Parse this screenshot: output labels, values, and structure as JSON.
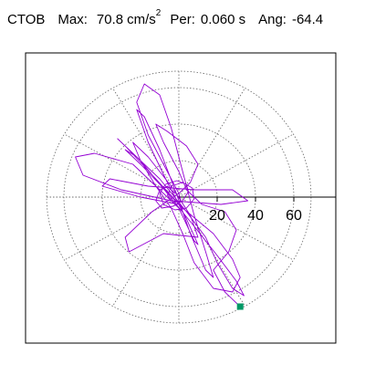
{
  "header": {
    "station": "CTOB",
    "max_label": "Max:",
    "max_value": "70.8",
    "max_unit": "cm/s",
    "max_unit_exp": "2",
    "per_label": "Per:",
    "per_value": "0.060 s",
    "ang_label": "Ang:",
    "ang_value": "-64.4"
  },
  "chart_data": {
    "type": "line",
    "title": "",
    "xlabel": "",
    "ylabel": "",
    "polar_grid": {
      "rings": [
        20,
        40,
        60
      ],
      "ring_labels": [
        "20",
        "40",
        "60"
      ],
      "spokes_deg": [
        0,
        30,
        60,
        90,
        120,
        150,
        180,
        210,
        240,
        270,
        300,
        330
      ],
      "max_radius": 60
    },
    "xlim": [
      -65,
      77
    ],
    "ylim": [
      -58,
      65
    ],
    "grid": true,
    "series": [
      {
        "color": "#9400d3",
        "points": [
          [
            -2,
            2
          ],
          [
            -6,
            6
          ],
          [
            -10,
            4
          ],
          [
            -12,
            -2
          ],
          [
            -9,
            -6
          ],
          [
            -3,
            -5
          ],
          [
            2,
            -2
          ],
          [
            5,
            3
          ],
          [
            4,
            7
          ],
          [
            -1,
            9
          ],
          [
            -7,
            7
          ],
          [
            -10,
            2
          ],
          [
            -8,
            -4
          ],
          [
            -2,
            -7
          ],
          [
            4,
            -6
          ],
          [
            8,
            -1
          ],
          [
            7,
            5
          ],
          [
            2,
            8
          ],
          [
            -4,
            6
          ],
          [
            -6,
            1
          ],
          [
            -3,
            -3
          ],
          [
            1,
            -2
          ],
          [
            0,
            2
          ],
          [
            -16,
            34
          ],
          [
            -22,
            52
          ],
          [
            -18,
            62
          ],
          [
            -10,
            56
          ],
          [
            -4,
            38
          ],
          [
            2,
            14
          ],
          [
            8,
            -10
          ],
          [
            14,
            -30
          ],
          [
            18,
            -44
          ],
          [
            14,
            -40
          ],
          [
            6,
            -20
          ],
          [
            -2,
            4
          ],
          [
            -10,
            26
          ],
          [
            -18,
            44
          ],
          [
            -22,
            48
          ],
          [
            -16,
            30
          ],
          [
            -6,
            8
          ],
          [
            4,
            -12
          ],
          [
            10,
            -26
          ],
          [
            8,
            -24
          ],
          [
            0,
            -6
          ],
          [
            -24,
            18
          ],
          [
            -44,
            24
          ],
          [
            -54,
            22
          ],
          [
            -50,
            12
          ],
          [
            -30,
            4
          ],
          [
            -4,
            -2
          ],
          [
            22,
            -4
          ],
          [
            36,
            -2
          ],
          [
            28,
            4
          ],
          [
            8,
            4
          ],
          [
            -16,
            6
          ],
          [
            -36,
            10
          ],
          [
            -40,
            6
          ],
          [
            -20,
            0
          ],
          [
            0,
            -4
          ],
          [
            -20,
            18
          ],
          [
            -28,
            26
          ],
          [
            -22,
            22
          ],
          [
            -10,
            10
          ],
          [
            4,
            -8
          ],
          [
            14,
            -22
          ],
          [
            20,
            -36
          ],
          [
            28,
            -50
          ],
          [
            34,
            -54
          ],
          [
            30,
            -46
          ],
          [
            20,
            -32
          ],
          [
            8,
            -16
          ],
          [
            -6,
            2
          ],
          [
            -20,
            20
          ],
          [
            -32,
            32
          ],
          [
            -28,
            28
          ],
          [
            -12,
            10
          ],
          [
            2,
            -6
          ],
          [
            18,
            -20
          ],
          [
            28,
            -34
          ],
          [
            32,
            -44
          ],
          [
            28,
            -52
          ],
          [
            18,
            -50
          ],
          [
            8,
            -36
          ],
          [
            2,
            -20
          ],
          [
            -4,
            -6
          ],
          [
            -12,
            6
          ],
          [
            -20,
            20
          ],
          [
            -24,
            30
          ],
          [
            -16,
            22
          ],
          [
            -4,
            6
          ],
          [
            6,
            -10
          ],
          [
            10,
            -22
          ],
          [
            -8,
            -20
          ],
          [
            -26,
            -30
          ],
          [
            -28,
            -22
          ],
          [
            -14,
            -8
          ],
          [
            0,
            2
          ],
          [
            6,
            8
          ],
          [
            10,
            18
          ],
          [
            4,
            28
          ],
          [
            -6,
            36
          ],
          [
            -12,
            40
          ],
          [
            -8,
            30
          ],
          [
            0,
            14
          ],
          [
            4,
            4
          ],
          [
            12,
            -4
          ],
          [
            24,
            -8
          ],
          [
            30,
            -18
          ],
          [
            26,
            -30
          ],
          [
            18,
            -40
          ],
          [
            24,
            -52
          ],
          [
            32,
            -60
          ]
        ]
      }
    ],
    "end_marker": {
      "x": 32,
      "y": -60,
      "color": "#009966"
    }
  }
}
